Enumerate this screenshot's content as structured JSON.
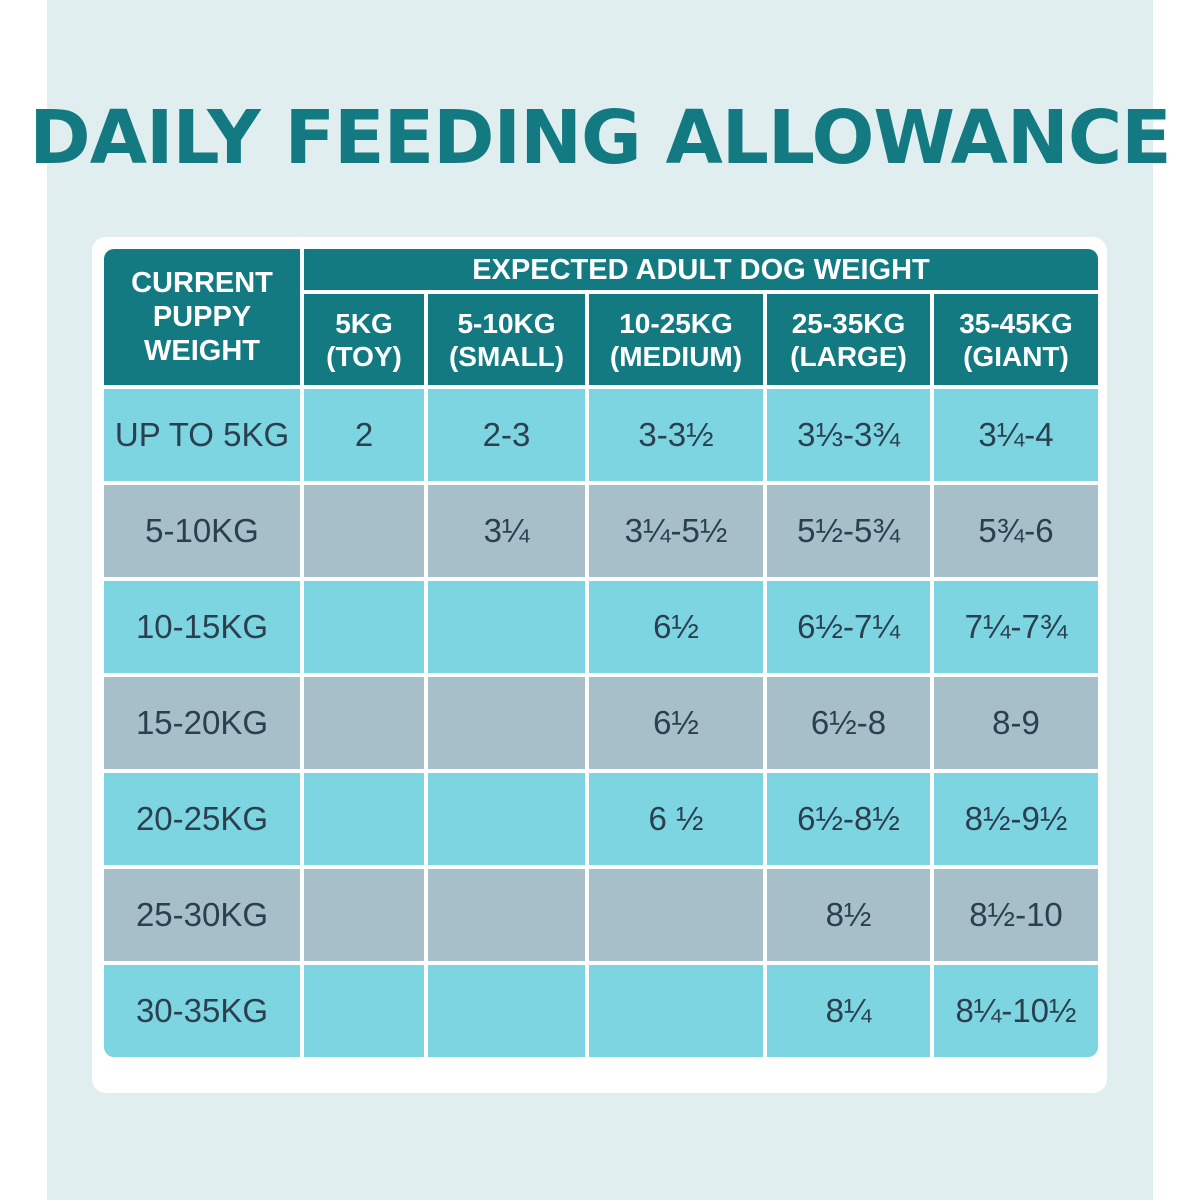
{
  "title": "DAILY FEEDING ALLOWANCE",
  "table": {
    "row_header": "CURRENT PUPPY WEIGHT",
    "group_header": "EXPECTED ADULT DOG WEIGHT",
    "columns": [
      {
        "weight": "5KG",
        "size": "(TOY)"
      },
      {
        "weight": "5-10KG",
        "size": "(SMALL)"
      },
      {
        "weight": "10-25KG",
        "size": "(MEDIUM)"
      },
      {
        "weight": "25-35KG",
        "size": "(LARGE)"
      },
      {
        "weight": "35-45KG",
        "size": "(GIANT)"
      }
    ],
    "rows": [
      {
        "label": "UP TO 5KG",
        "values": [
          "2",
          "2-3",
          "3-3½",
          "3⅓-3¾",
          "3¼-4"
        ]
      },
      {
        "label": "5-10KG",
        "values": [
          "",
          "3¼",
          "3¼-5½",
          "5½-5¾",
          "5¾-6"
        ]
      },
      {
        "label": "10-15KG",
        "values": [
          "",
          "",
          "6½",
          "6½-7¼",
          "7¼-7¾"
        ]
      },
      {
        "label": "15-20KG",
        "values": [
          "",
          "",
          "6½",
          "6½-8",
          "8-9"
        ]
      },
      {
        "label": "20-25KG",
        "values": [
          "",
          "",
          "6 ½",
          "6½-8½",
          "8½-9½"
        ]
      },
      {
        "label": "25-30KG",
        "values": [
          "",
          "",
          "",
          "8½",
          "8½-10"
        ]
      },
      {
        "label": "30-35KG",
        "values": [
          "",
          "",
          "",
          "8¼",
          "8¼-10½"
        ]
      }
    ]
  },
  "colors": {
    "header": "#137a82",
    "row_teal": "#7dd5e2",
    "row_grey": "#a6bfc9",
    "background": "#e1eef0"
  }
}
